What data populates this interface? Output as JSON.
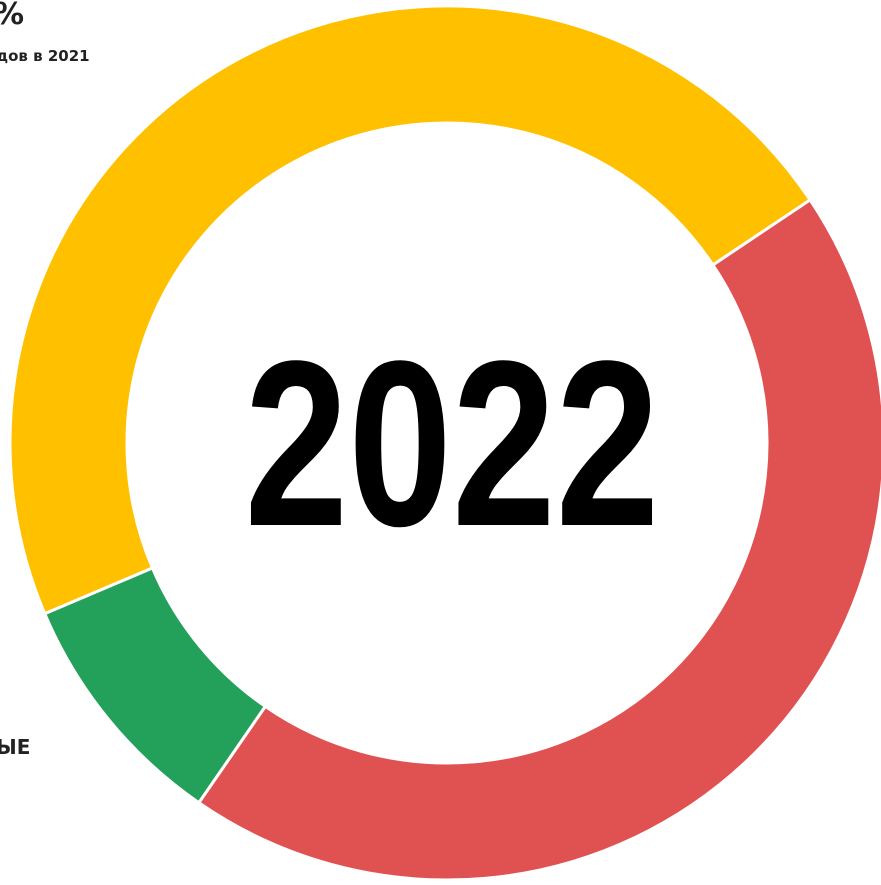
{
  "chart_data": {
    "type": "donut",
    "texts": [
      "%",
      "дов в 2021",
      "ЫЕ"
    ],
    "center_label": "2022",
    "series": [
      {
        "color": "#ffc000",
        "values": [
          47
        ]
      },
      {
        "color": "#e05252",
        "values": [
          44
        ]
      },
      {
        "color": "#23a05a",
        "values": [
          9
        ]
      }
    ]
  }
}
